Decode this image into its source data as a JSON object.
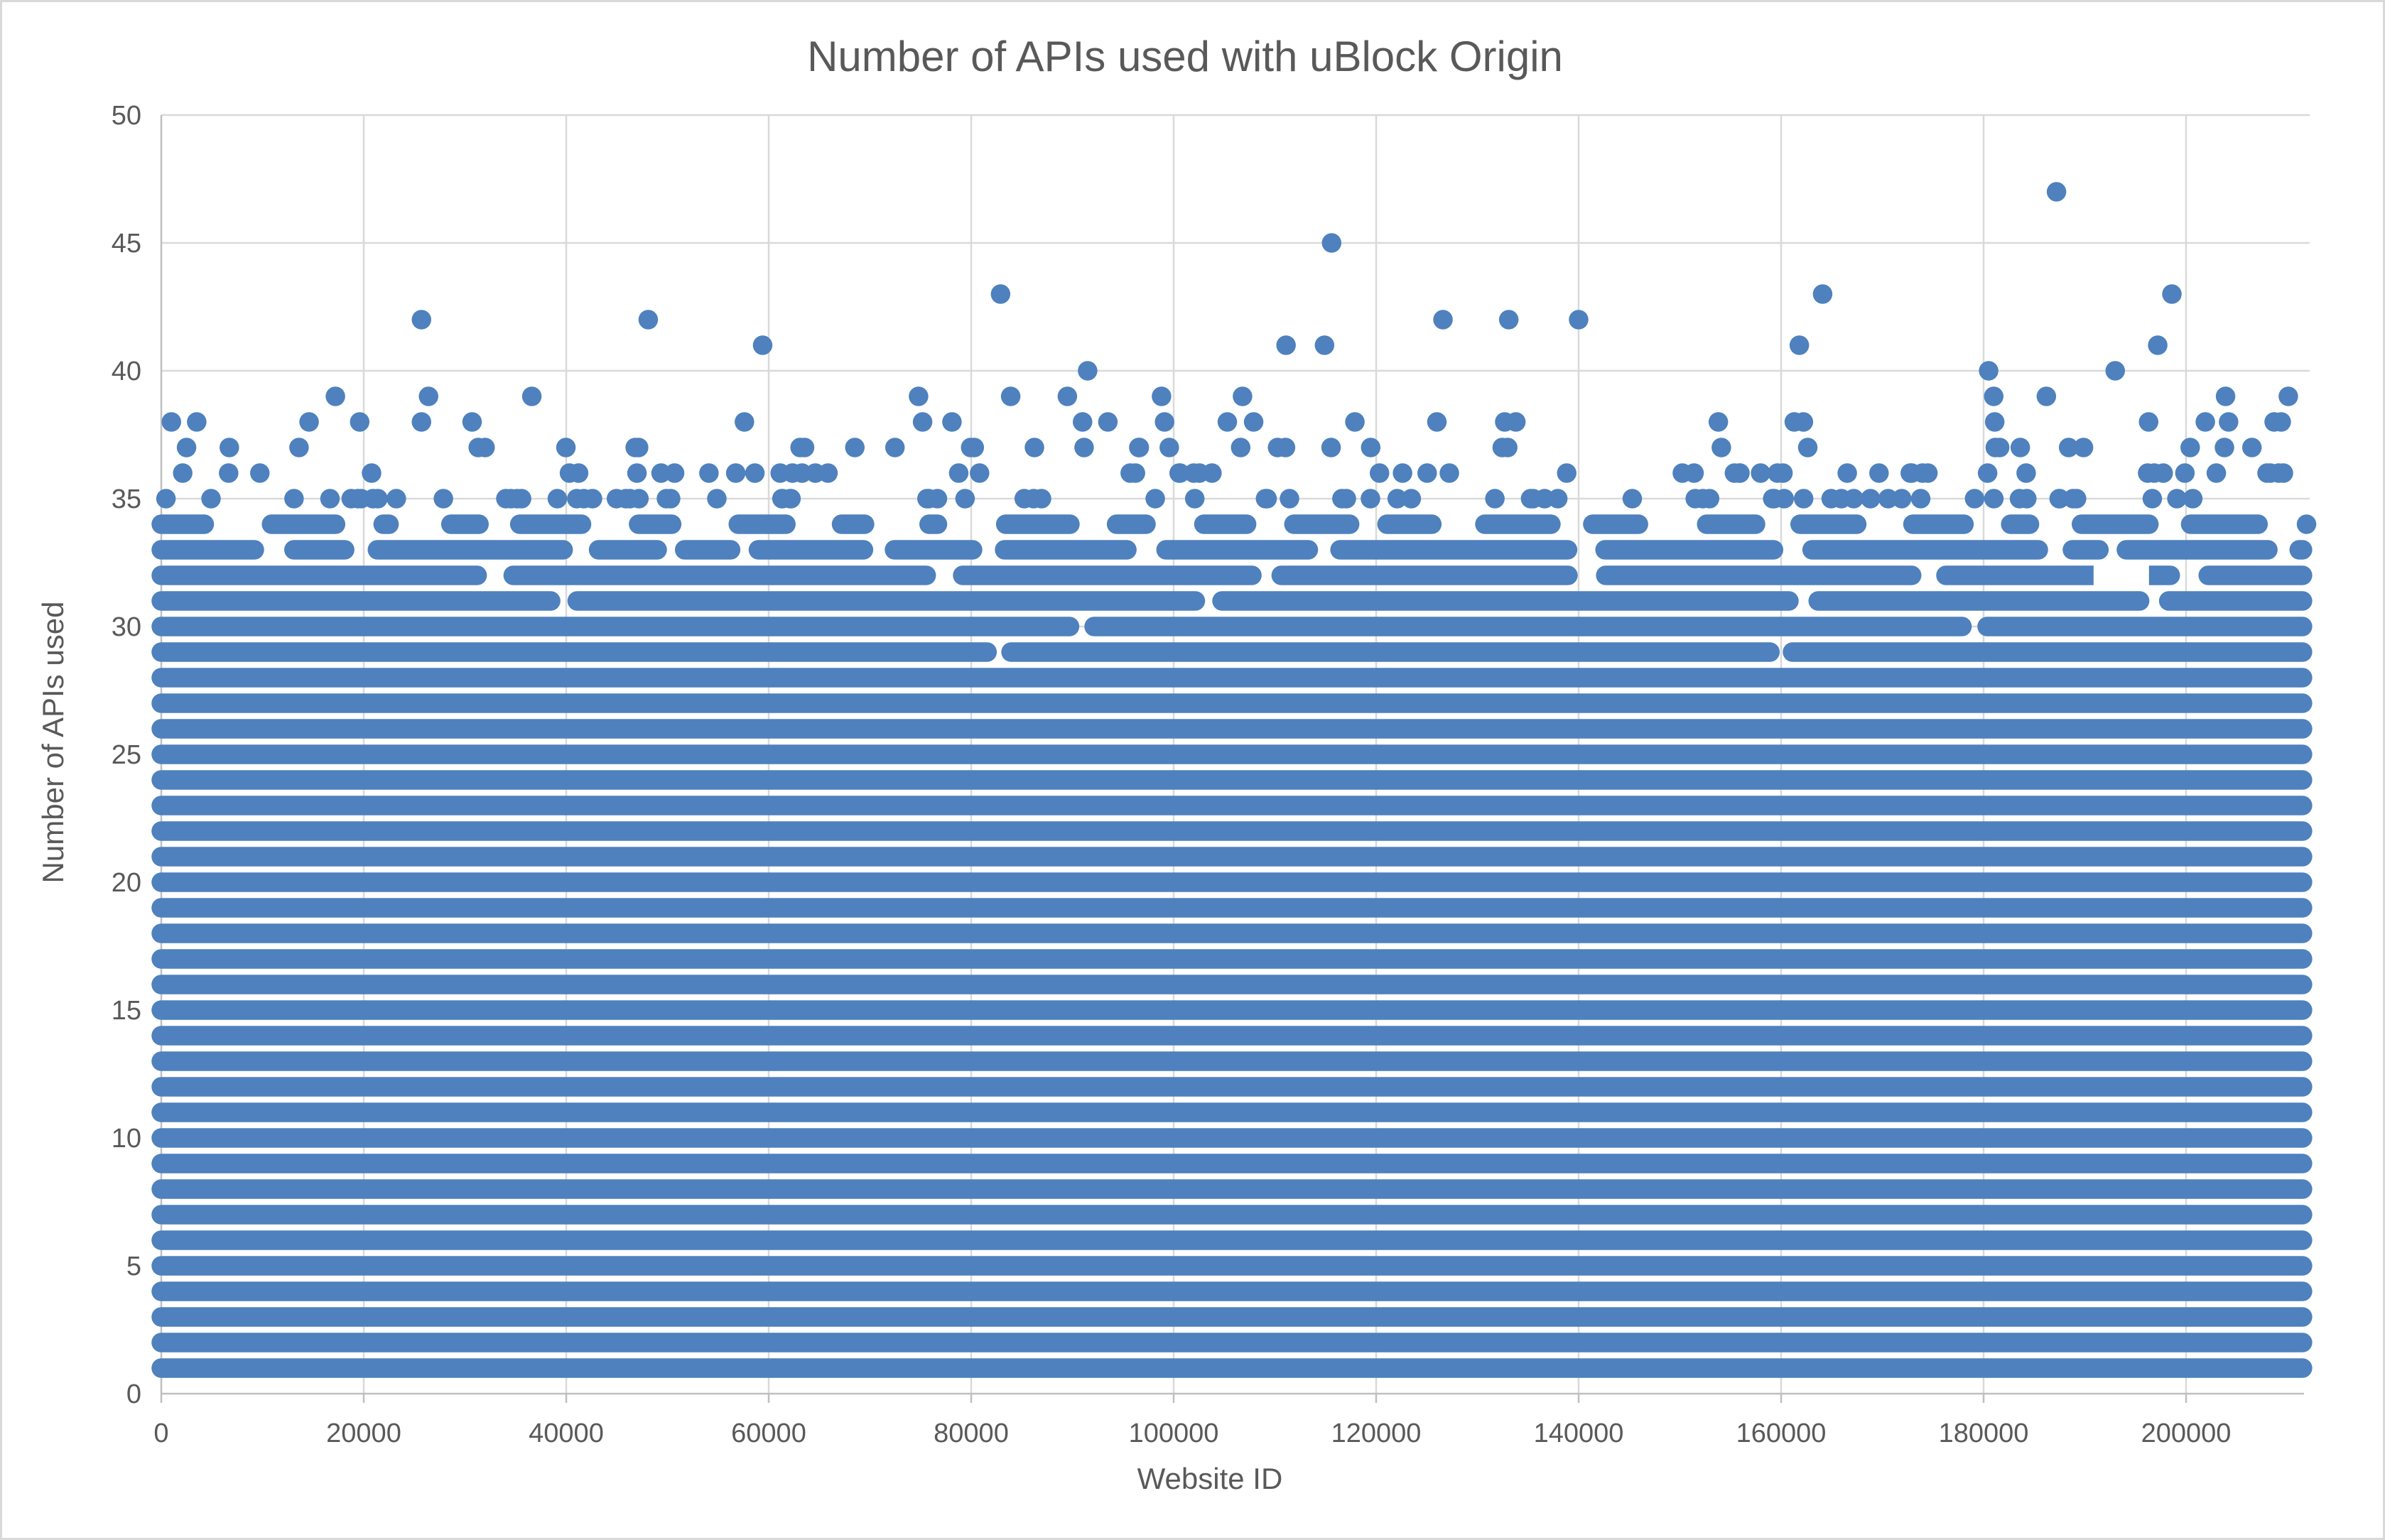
{
  "theme": {
    "background": "#FFFFFF",
    "canvas_border": "#D9D9D9",
    "gridline_color": "#D9D9D9",
    "axis_line_color": "#BFBFBF",
    "text_color": "#595959",
    "marker_color": "#4E81BD"
  },
  "chart_data": {
    "type": "scatter",
    "title": "Number of APIs used with uBlock Origin",
    "xlabel": "Website ID",
    "ylabel": "Number of APIs used",
    "xlim": [
      0,
      212000
    ],
    "ylim": [
      0,
      50
    ],
    "x_ticks": [
      0,
      20000,
      40000,
      60000,
      80000,
      100000,
      120000,
      140000,
      160000,
      180000,
      200000
    ],
    "y_ticks": [
      0,
      5,
      10,
      15,
      20,
      25,
      30,
      35,
      40,
      45,
      50
    ],
    "grid": true,
    "legend": "none",
    "marker_color": "#4E81BD",
    "x_data_max": 211500,
    "seed": 20,
    "description": "Scatter of APIs used per website ID (~211,500 websites). Values 1-28 are saturated solid horizontal bands across the full ID range; coverage thins from 29 to 34; values 35-37 are sparse scattered dots; 38 and above are individual outliers listed explicitly.",
    "solid_rows": {
      "from": 1,
      "to": 28
    },
    "bands_runs": [
      {
        "y": 29,
        "run": [
          900,
          1600
        ],
        "gap": [
          3,
          7
        ]
      },
      {
        "y": 30,
        "run": [
          800,
          1500
        ],
        "gap": [
          4,
          10
        ]
      },
      {
        "y": 31,
        "run": [
          350,
          900
        ],
        "gap": [
          8,
          22
        ]
      },
      {
        "y": 32,
        "run": [
          160,
          620
        ],
        "gap": [
          10,
          28
        ],
        "notches": [
          {
            "id": 193600,
            "w": 78
          }
        ]
      },
      {
        "y": 33,
        "run": [
          55,
          380
        ],
        "gap": [
          10,
          32
        ]
      },
      {
        "y": 34,
        "run": [
          28,
          130
        ],
        "gap": [
          18,
          70
        ]
      }
    ],
    "bands_dots": [
      {
        "y": 35,
        "count": 78
      },
      {
        "y": 36,
        "count": 56
      },
      {
        "y": 37,
        "count": 36
      }
    ],
    "outlier_points": {
      "38": [
        1000,
        3500,
        14600,
        19600,
        25700,
        30700,
        57600,
        75200,
        78100,
        91000,
        93500,
        99100,
        105300,
        107900,
        117900,
        126000,
        132700,
        133800,
        153800,
        161300,
        162200,
        181100,
        196300,
        201900,
        204200,
        208700,
        209400
      ],
      "39": [
        17200,
        26400,
        36600,
        74800,
        83900,
        89500,
        98800,
        106800,
        181000,
        186200,
        203900,
        210100
      ],
      "40": [
        91500,
        180500,
        193000
      ],
      "41": [
        59400,
        111100,
        114900,
        161800,
        197200
      ],
      "42": [
        25700,
        48100,
        126600,
        133100,
        140000
      ],
      "43": [
        82900,
        164100,
        198600
      ],
      "45": [
        115600
      ],
      "47": [
        187200
      ]
    }
  }
}
